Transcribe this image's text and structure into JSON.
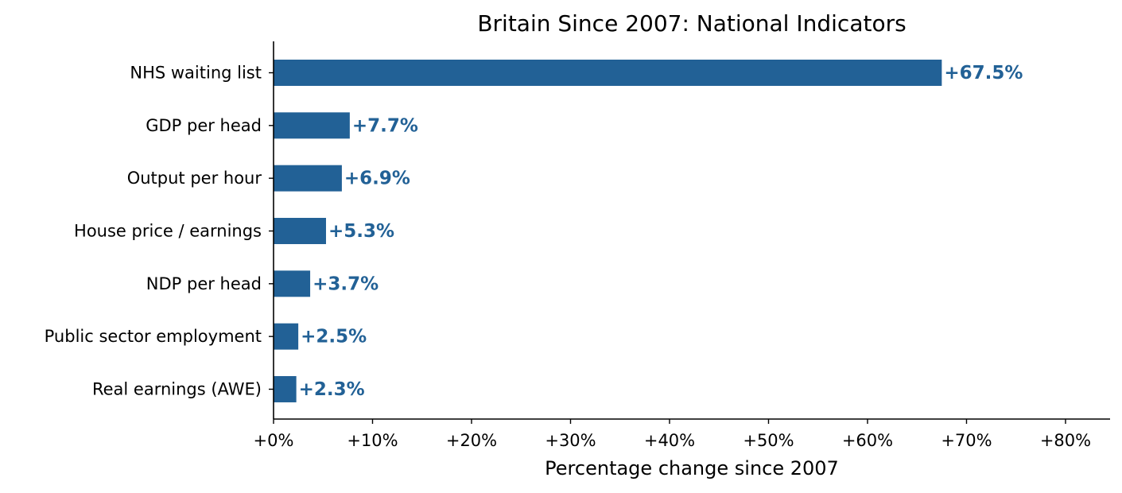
{
  "chart_data": {
    "type": "bar",
    "orientation": "horizontal",
    "title": "Britain Since 2007: National Indicators",
    "xlabel": "Percentage change since 2007",
    "ylabel": "",
    "categories": [
      "NHS waiting list",
      "GDP per head",
      "Output per hour",
      "House price / earnings",
      "NDP per head",
      "Public sector employment",
      "Real earnings (AWE)"
    ],
    "values": [
      67.5,
      7.7,
      6.9,
      5.3,
      3.7,
      2.5,
      2.3
    ],
    "data_labels": [
      "+67.5%",
      "+7.7%",
      "+6.9%",
      "+5.3%",
      "+3.7%",
      "+2.5%",
      "+2.3%"
    ],
    "xlim": [
      0,
      84.5
    ],
    "xticks": [
      0,
      10,
      20,
      30,
      40,
      50,
      60,
      70,
      80
    ],
    "xtick_labels": [
      "+0%",
      "+10%",
      "+20%",
      "+30%",
      "+40%",
      "+50%",
      "+60%",
      "+70%",
      "+80%"
    ],
    "grid": false,
    "legend": "none",
    "colors": {
      "bar": "#226196",
      "data_label": "#226196"
    }
  }
}
